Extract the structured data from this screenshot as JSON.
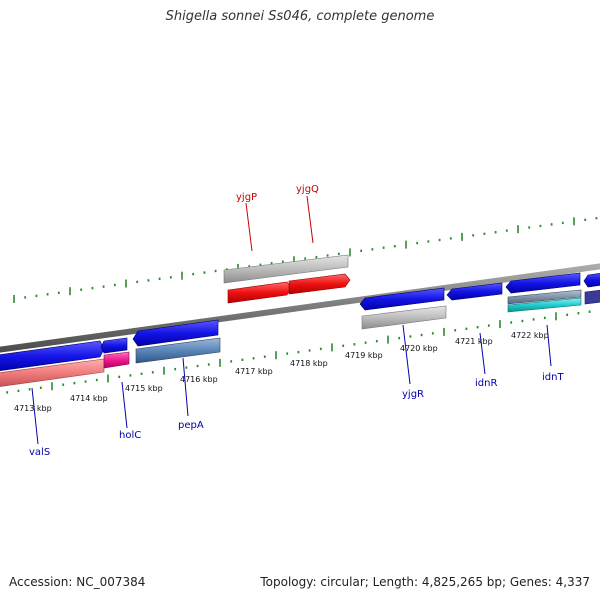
{
  "title": "Shigella sonnei Ss046, complete genome",
  "footer": {
    "accession": "Accession: NC_007384",
    "topology": "Topology: circular; Length: 4,825,265 bp; Genes: 4,337"
  },
  "scale_labels": [
    "4713 kbp",
    "4714 kbp",
    "4715 kbp",
    "4716 kbp",
    "4717 kbp",
    "4718 kbp",
    "4719 kbp",
    "4720 kbp",
    "4721 kbp",
    "4722 kbp"
  ],
  "genes_forward": [
    {
      "name": "yjgP",
      "color": "#cc0000"
    },
    {
      "name": "yjgQ",
      "color": "#cc0000"
    }
  ],
  "genes_reverse": [
    {
      "name": "valS",
      "color": "#0000aa"
    },
    {
      "name": "holC",
      "color": "#0000aa"
    },
    {
      "name": "pepA",
      "color": "#0000aa"
    },
    {
      "name": "yjgR",
      "color": "#0000aa"
    },
    {
      "name": "idnR",
      "color": "#0000aa"
    },
    {
      "name": "idnT",
      "color": "#0000aa"
    }
  ],
  "colors": {
    "backbone": "#7a7a7a",
    "tick": "#2e8b2e",
    "cds_blue": "#1414e6",
    "cds_red": "#ee1111",
    "cds_gray": "#bdbdbd",
    "cds_pink": "#ee7a7a",
    "cds_magenta": "#ee1a8c",
    "cds_steel": "#5b86b8",
    "cds_cyan": "#22cccc"
  }
}
